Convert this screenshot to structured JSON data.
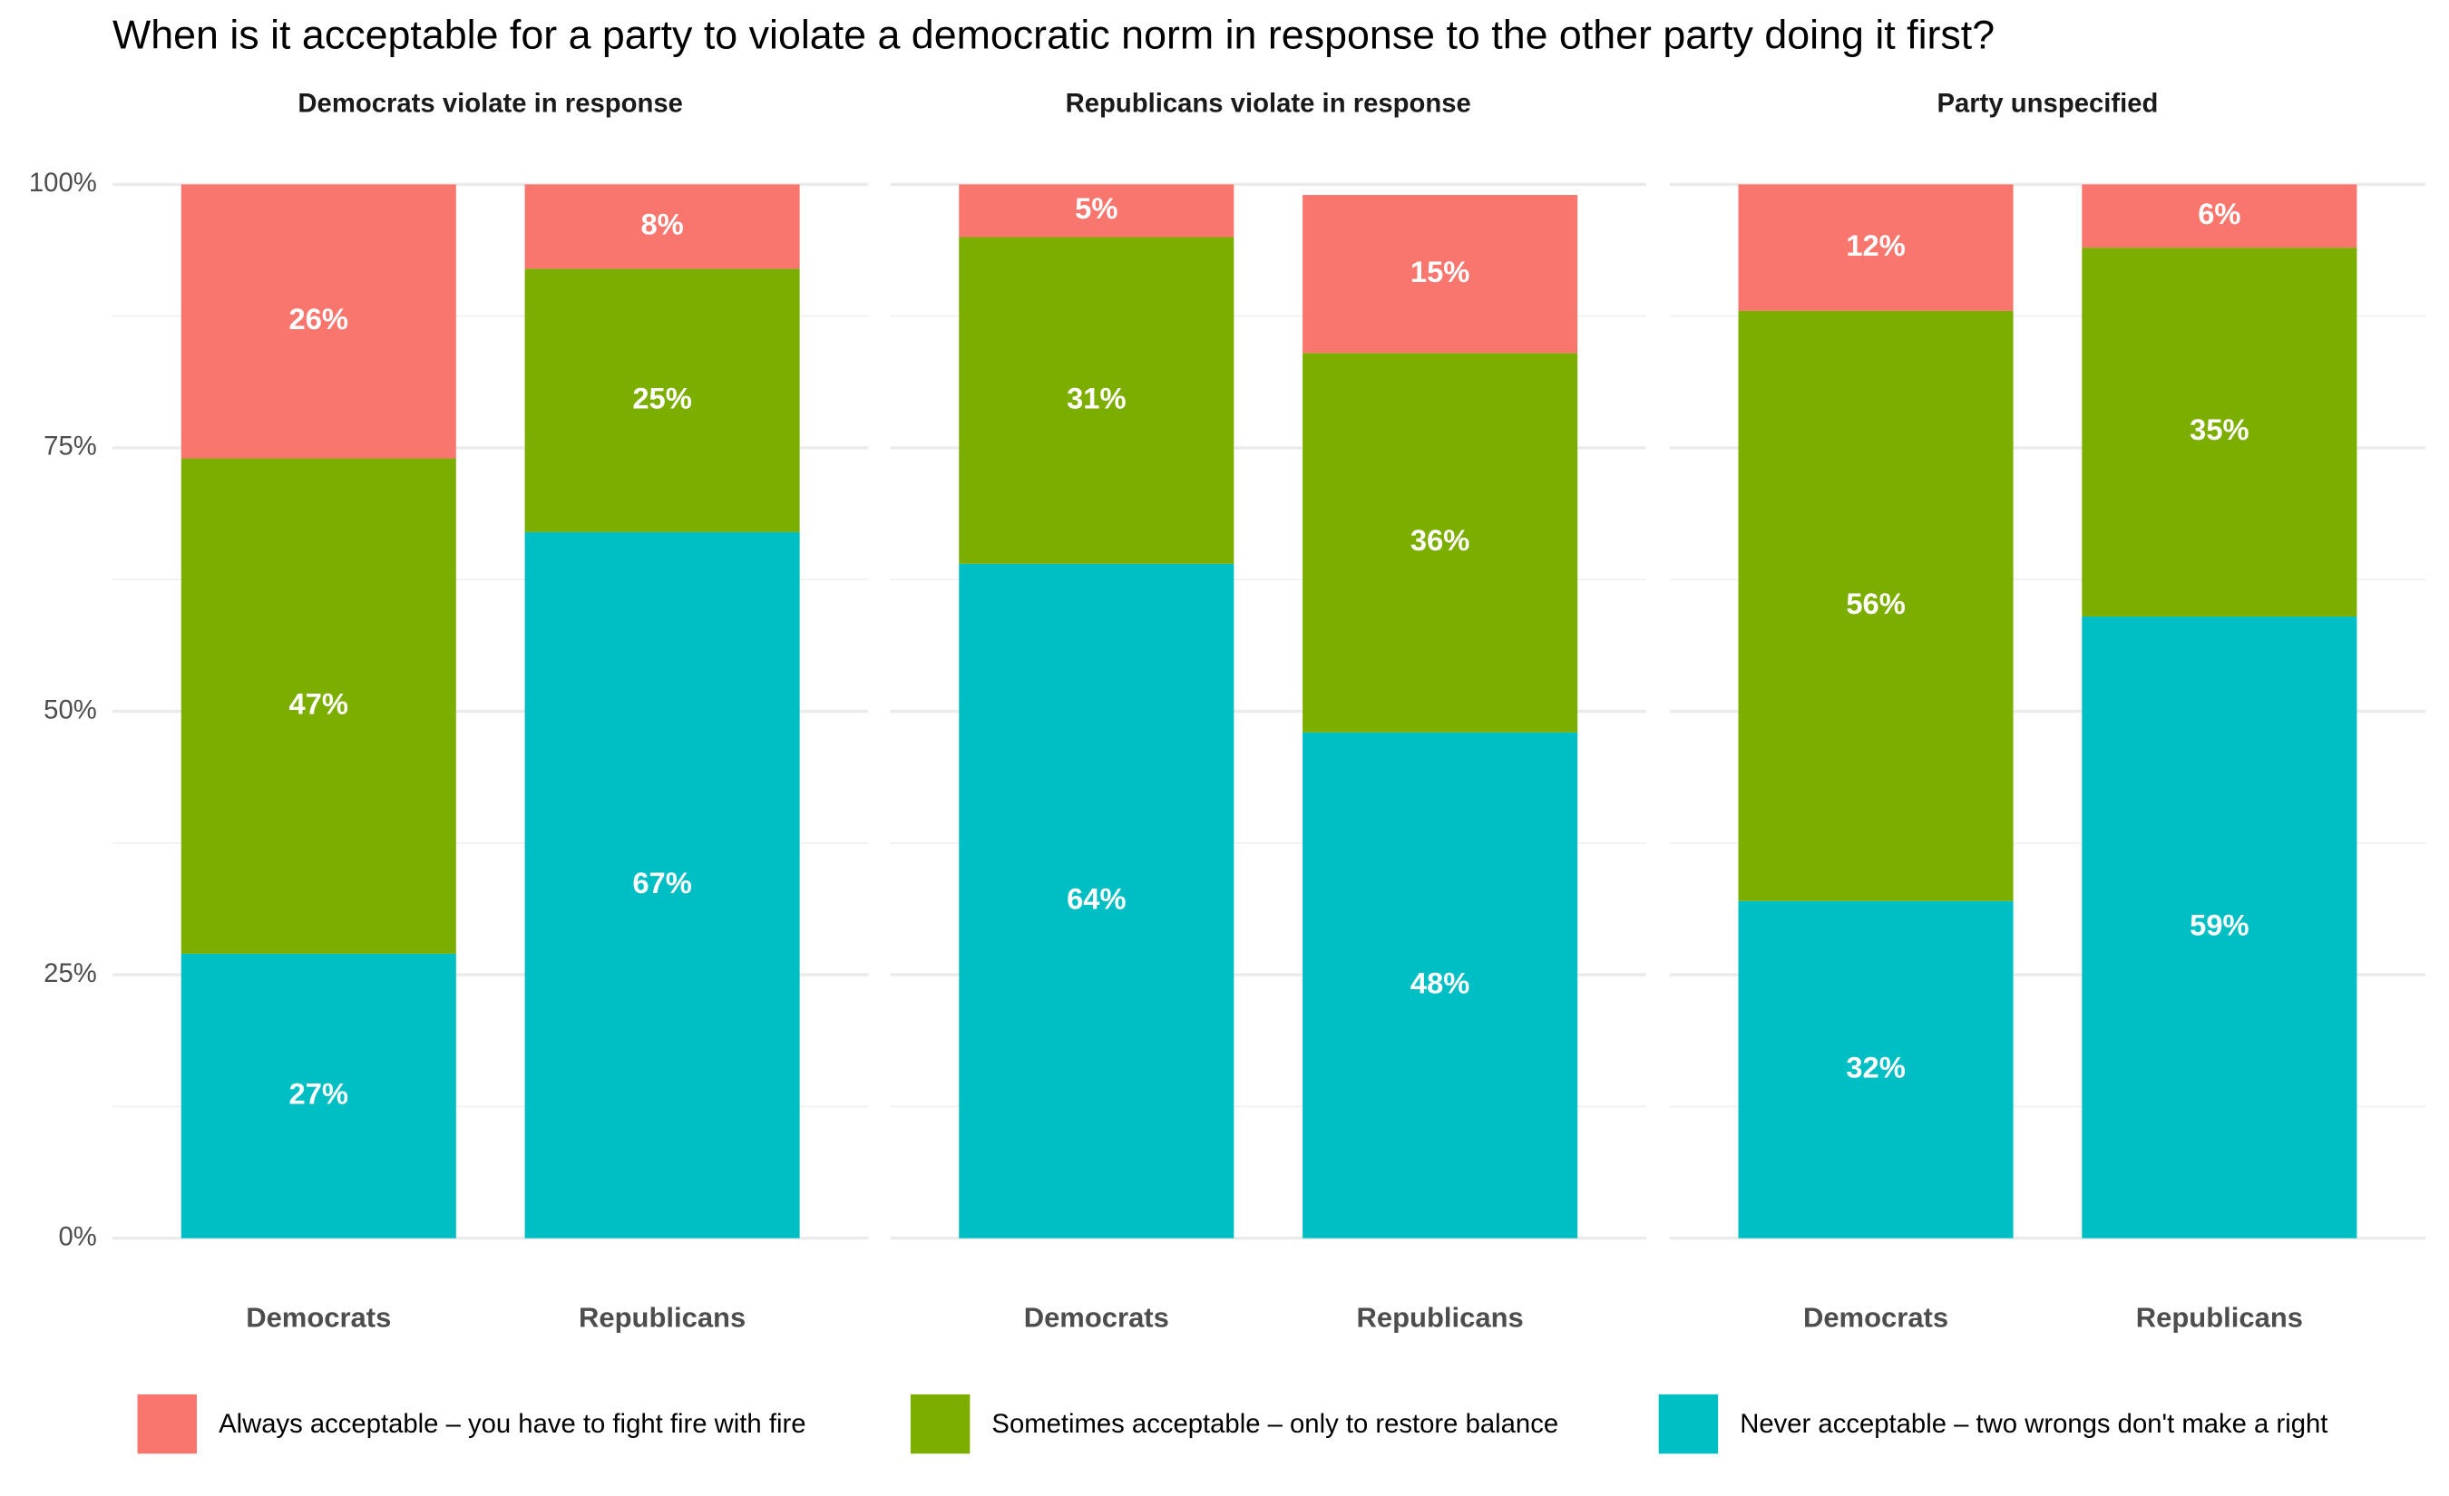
{
  "chart_data": {
    "type": "bar",
    "stacked": true,
    "title": "When is it acceptable for a party to violate a democratic norm in response to the other party doing it first?",
    "ylim": [
      0,
      100
    ],
    "yticks": [
      {
        "value": 0,
        "label": "0%"
      },
      {
        "value": 25,
        "label": "25%"
      },
      {
        "value": 50,
        "label": "50%"
      },
      {
        "value": 75,
        "label": "75%"
      },
      {
        "value": 100,
        "label": "100%"
      }
    ],
    "grid": true,
    "legend": "bottom",
    "series": [
      {
        "name": "Never acceptable – two wrongs don't make a right",
        "color": "#00bfc4"
      },
      {
        "name": "Sometimes acceptable – only to restore balance",
        "color": "#7cae00"
      },
      {
        "name": "Always acceptable – you have to fight fire with fire",
        "color": "#f8766d"
      }
    ],
    "panels": [
      {
        "title": "Democrats violate in response",
        "categories": [
          "Democrats",
          "Republicans"
        ],
        "series": [
          {
            "values": [
              27,
              67
            ],
            "value_labels": [
              "27%",
              "67%"
            ]
          },
          {
            "values": [
              47,
              25
            ],
            "value_labels": [
              "47%",
              "25%"
            ]
          },
          {
            "values": [
              26,
              8
            ],
            "value_labels": [
              "26%",
              "8%"
            ]
          }
        ]
      },
      {
        "title": "Republicans violate in response",
        "categories": [
          "Democrats",
          "Republicans"
        ],
        "series": [
          {
            "values": [
              64,
              48
            ],
            "value_labels": [
              "64%",
              "48%"
            ]
          },
          {
            "values": [
              31,
              36
            ],
            "value_labels": [
              "31%",
              "36%"
            ]
          },
          {
            "values": [
              5,
              15
            ],
            "value_labels": [
              "5%",
              "15%"
            ]
          }
        ]
      },
      {
        "title": "Party unspecified",
        "categories": [
          "Democrats",
          "Republicans"
        ],
        "series": [
          {
            "values": [
              32,
              59
            ],
            "value_labels": [
              "32%",
              "59%"
            ]
          },
          {
            "values": [
              56,
              35
            ],
            "value_labels": [
              "56%",
              "35%"
            ]
          },
          {
            "values": [
              12,
              6
            ],
            "value_labels": [
              "12%",
              "6%"
            ]
          }
        ]
      }
    ]
  }
}
